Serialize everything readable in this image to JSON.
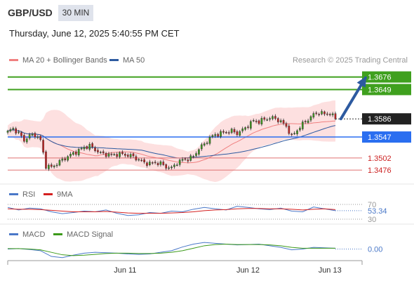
{
  "header": {
    "pair": "GBP/USD",
    "timeframe": "30 MIN",
    "datetime": "Thursday, June 12, 2025 5:40:55 PM CET"
  },
  "legend": {
    "main": [
      {
        "label": "MA 20 + Bollinger Bands",
        "color": "#f08080"
      },
      {
        "label": "MA 50",
        "color": "#2d5aa0"
      }
    ],
    "rsi": [
      {
        "label": "RSI",
        "color": "#4a78c8"
      },
      {
        "label": "9MA",
        "color": "#d42020"
      }
    ],
    "macd": [
      {
        "label": "MACD",
        "color": "#4a78c8"
      },
      {
        "label": "MACD Signal",
        "color": "#3c9a1a"
      }
    ]
  },
  "credit": "Research © 2025 Trading Central",
  "colors": {
    "up": "#3fa01e",
    "down": "#cc2222",
    "pivot": "#2a6ef0",
    "support": "#e07070",
    "band_fill": "#fde0e0",
    "arrow": "#2d5aa0",
    "last": "#222222"
  },
  "chart_data": [
    {
      "type": "candlestick",
      "title": "GBP/USD",
      "timeframe": "30 MIN",
      "ylim": [
        1.3452,
        1.3698
      ],
      "xlim": [
        0,
        120
      ],
      "x_ticks": [
        {
          "label": "Jun 11",
          "x": 43
        },
        {
          "label": "Jun 12",
          "x": 88
        },
        {
          "label": "Jun 13",
          "x": 118
        }
      ],
      "levels": [
        {
          "label": "1.3676",
          "value": 1.3676,
          "kind": "target"
        },
        {
          "label": "1.3649",
          "value": 1.3649,
          "kind": "target"
        },
        {
          "label": "1.3586",
          "value": 1.3586,
          "kind": "last"
        },
        {
          "label": "1.3547",
          "value": 1.3547,
          "kind": "pivot"
        },
        {
          "label": "1.3502",
          "value": 1.3502,
          "kind": "support"
        },
        {
          "label": "1.3476",
          "value": 1.3476,
          "kind": "support"
        }
      ],
      "arrow": {
        "from": {
          "x": 122,
          "y": 1.3586
        },
        "to": {
          "x": 131,
          "y": 1.3674
        }
      },
      "anchors": [
        [
          0,
          1.3558
        ],
        [
          2,
          1.3565
        ],
        [
          4,
          1.3555
        ],
        [
          6,
          1.354
        ],
        [
          8,
          1.355
        ],
        [
          10,
          1.3552
        ],
        [
          12,
          1.354
        ],
        [
          14,
          1.3485
        ],
        [
          16,
          1.3482
        ],
        [
          18,
          1.349
        ],
        [
          20,
          1.3498
        ],
        [
          22,
          1.3505
        ],
        [
          24,
          1.3512
        ],
        [
          26,
          1.3518
        ],
        [
          28,
          1.3525
        ],
        [
          30,
          1.3528
        ],
        [
          32,
          1.352
        ],
        [
          34,
          1.3512
        ],
        [
          36,
          1.351
        ],
        [
          38,
          1.3508
        ],
        [
          40,
          1.351
        ],
        [
          42,
          1.351
        ],
        [
          44,
          1.3508
        ],
        [
          46,
          1.3505
        ],
        [
          48,
          1.3498
        ],
        [
          50,
          1.3492
        ],
        [
          52,
          1.349
        ],
        [
          54,
          1.3492
        ],
        [
          56,
          1.349
        ],
        [
          58,
          1.3483
        ],
        [
          60,
          1.348
        ],
        [
          62,
          1.3492
        ],
        [
          64,
          1.3498
        ],
        [
          66,
          1.35
        ],
        [
          68,
          1.3505
        ],
        [
          70,
          1.3522
        ],
        [
          72,
          1.3532
        ],
        [
          74,
          1.3545
        ],
        [
          76,
          1.3552
        ],
        [
          78,
          1.3555
        ],
        [
          80,
          1.3558
        ],
        [
          82,
          1.356
        ],
        [
          84,
          1.3555
        ],
        [
          86,
          1.3562
        ],
        [
          88,
          1.3572
        ],
        [
          90,
          1.3582
        ],
        [
          92,
          1.358
        ],
        [
          94,
          1.3585
        ],
        [
          96,
          1.3588
        ],
        [
          98,
          1.3587
        ],
        [
          100,
          1.358
        ],
        [
          102,
          1.357
        ],
        [
          104,
          1.3548
        ],
        [
          106,
          1.3562
        ],
        [
          108,
          1.3575
        ],
        [
          110,
          1.3585
        ],
        [
          112,
          1.3595
        ],
        [
          114,
          1.36
        ],
        [
          116,
          1.3596
        ],
        [
          118,
          1.3598
        ],
        [
          120,
          1.3586
        ]
      ]
    },
    {
      "type": "line",
      "title": "RSI",
      "ylim": [
        30,
        70
      ],
      "y_ticks": [
        "70",
        "30"
      ],
      "last_value": "53.34",
      "series": [
        {
          "name": "RSI",
          "values": [
            62,
            55,
            60,
            58,
            50,
            45,
            48,
            52,
            50,
            55,
            46,
            40,
            42,
            48,
            46,
            52,
            50,
            57,
            62,
            58,
            55,
            65,
            62,
            58,
            56,
            60,
            52,
            50,
            63,
            58,
            53
          ]
        },
        {
          "name": "9MA",
          "values": [
            58,
            57,
            57,
            56,
            54,
            52,
            50,
            50,
            50,
            51,
            49,
            47,
            46,
            46,
            46,
            47,
            48,
            50,
            53,
            55,
            56,
            58,
            59,
            59,
            58,
            58,
            57,
            55,
            57,
            58,
            56
          ]
        }
      ]
    },
    {
      "type": "line",
      "title": "MACD",
      "last_value": "0.00",
      "series": [
        {
          "name": "MACD",
          "values": [
            0.0,
            0.0001,
            -0.0001,
            -0.0004,
            -0.0018,
            -0.0021,
            -0.0015,
            -0.001,
            -0.0008,
            -0.0009,
            -0.001,
            -0.0012,
            -0.0013,
            -0.0012,
            -0.0008,
            -0.0004,
            0.0005,
            0.0012,
            0.0016,
            0.0014,
            0.0012,
            0.001,
            0.0011,
            0.0012,
            0.0008,
            0.0004,
            -0.0002,
            0.0,
            0.0004,
            0.0003,
            0.0002
          ]
        },
        {
          "name": "MACD Signal",
          "values": [
            0.0001,
            0.0001,
            0.0,
            -0.0002,
            -0.0008,
            -0.0014,
            -0.0016,
            -0.0015,
            -0.0013,
            -0.0011,
            -0.001,
            -0.001,
            -0.0011,
            -0.0011,
            -0.001,
            -0.0008,
            -0.0004,
            0.0002,
            0.0008,
            0.0011,
            0.0012,
            0.0011,
            0.0011,
            0.0011,
            0.001,
            0.0008,
            0.0004,
            0.0002,
            0.0002,
            0.0002,
            0.0002
          ]
        }
      ]
    }
  ]
}
